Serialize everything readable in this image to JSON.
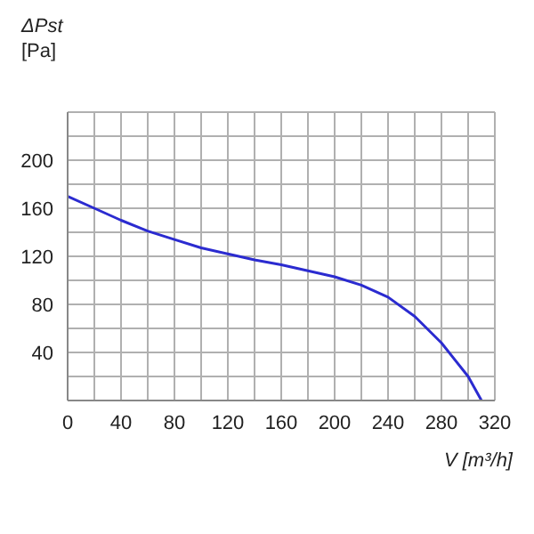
{
  "chart_data": {
    "type": "line",
    "xlabel": "V [m³/h]",
    "ylabel": "ΔPst [Pa]",
    "x": [
      0,
      20,
      40,
      60,
      80,
      100,
      120,
      140,
      160,
      180,
      200,
      220,
      240,
      260,
      280,
      300,
      310
    ],
    "series": [
      {
        "color": "#2b2bd0",
        "values": [
          170,
          160,
          150,
          141,
          134,
          127,
          122,
          117,
          113,
          108,
          103,
          96,
          86,
          70,
          48,
          20,
          0
        ]
      }
    ],
    "xlim": [
      0,
      320
    ],
    "xticks": [
      0,
      {
        "value": 20,
        "label": null
      },
      40,
      {
        "value": 60,
        "label": null
      },
      80,
      {
        "value": 100,
        "label": null
      },
      120,
      {
        "value": 140,
        "label": null
      },
      160,
      {
        "value": 180,
        "label": null
      },
      200,
      {
        "value": 220,
        "label": null
      },
      240,
      {
        "value": 260,
        "label": null
      },
      280,
      {
        "value": 300,
        "label": null
      },
      320
    ],
    "ylim": [
      0,
      240
    ],
    "yticks": [
      {
        "value": 0,
        "label": null
      },
      {
        "value": 20,
        "label": null
      },
      40,
      {
        "value": 60,
        "label": null
      },
      80,
      {
        "value": 100,
        "label": null
      },
      120,
      {
        "value": 140,
        "label": null
      },
      160,
      {
        "value": 180,
        "label": null
      },
      200,
      {
        "value": 220,
        "label": null
      },
      {
        "value": 240,
        "label": null
      }
    ],
    "grid": true,
    "legend": false,
    "marker": "none",
    "line_style": "solid"
  }
}
